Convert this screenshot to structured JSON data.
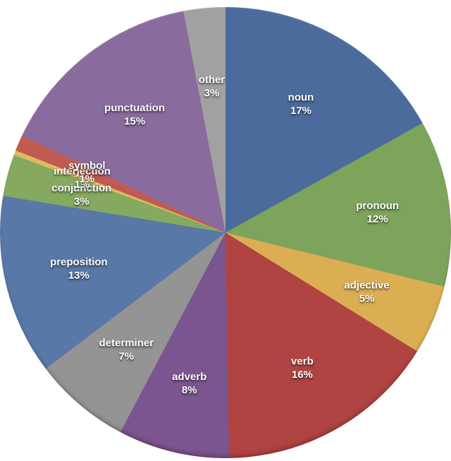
{
  "chart_data": {
    "type": "pie",
    "legend": "none",
    "background": "#ffffff",
    "label_text_color": "#ffffff",
    "start_angle_deg": 0,
    "direction": "clockwise",
    "slices": [
      {
        "label": "noun",
        "value": 17,
        "percent_label": "17%",
        "color": "#4a6b9c",
        "sweep": 17,
        "label_r": 0.66
      },
      {
        "label": "pronoun",
        "value": 12,
        "percent_label": "12%",
        "color": "#7ea35a",
        "sweep": 12,
        "label_r": 0.68
      },
      {
        "label": "adjective",
        "value": 5,
        "percent_label": "5%",
        "color": "#dbae54",
        "sweep": 5,
        "label_r": 0.68
      },
      {
        "label": "verb",
        "value": 16,
        "percent_label": "16%",
        "color": "#af4442",
        "sweep": 16,
        "label_r": 0.69
      },
      {
        "label": "adverb",
        "value": 8,
        "percent_label": "8%",
        "color": "#7a5590",
        "sweep": 8,
        "label_r": 0.69
      },
      {
        "label": "determiner",
        "value": 7,
        "percent_label": "7%",
        "color": "#949494",
        "sweep": 7,
        "label_r": 0.68
      },
      {
        "label": "preposition",
        "value": 13,
        "percent_label": "13%",
        "color": "#5878a8",
        "sweep": 13,
        "label_r": 0.67
      },
      {
        "label": "conjunction",
        "value": 3,
        "percent_label": "3%",
        "color": "#85aa5f",
        "sweep": 3,
        "label_r": 0.66
      },
      {
        "label": "interjection",
        "value": 1,
        "percent_label": "1%",
        "color": "#e0ba60",
        "sweep": 0.35,
        "label_r": 0.68
      },
      {
        "label": "symbol",
        "value": 1,
        "percent_label": "1%",
        "color": "#c05b52",
        "sweep": 1.15,
        "label_r": 0.67
      },
      {
        "label": "punctuation",
        "value": 15,
        "percent_label": "15%",
        "color": "#8a6b9e",
        "sweep": 15,
        "label_r": 0.66
      },
      {
        "label": "other",
        "value": 3,
        "percent_label": "3%",
        "color": "#a1a1a1",
        "sweep": 3,
        "label_r": 0.65
      }
    ]
  }
}
